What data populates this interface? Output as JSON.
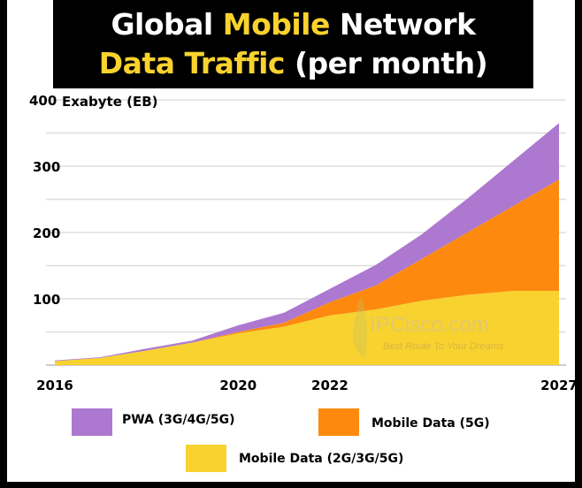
{
  "title": {
    "line1_part1": "Global ",
    "line1_part2": "Mobile",
    "line1_part3": " Network",
    "line2_part1": "Data Traffic",
    "line2_part2": " (per month)"
  },
  "watermark": {
    "brand": "IPCisco.com",
    "slogan": "Best Route To Your Dreams"
  },
  "colors": {
    "pwa": "#ad78d0",
    "mobile_5g": "#fd8a0e",
    "mobile_2g3g5g": "#f8d22f",
    "title_highlight": "#f9d22e",
    "grid": "#dddddd"
  },
  "chart_data": {
    "type": "area",
    "stacked": true,
    "title": "Global Mobile Network Data Traffic (per month)",
    "ylabel": "Exabyte (EB)",
    "x": [
      2016,
      2017,
      2018,
      2019,
      2020,
      2021,
      2022,
      2023,
      2024,
      2025,
      2026,
      2027
    ],
    "xticks": [
      "2016",
      "2020",
      "2022",
      "2027"
    ],
    "yticks": [
      "100",
      "200",
      "300",
      "400"
    ],
    "ylim": [
      0,
      400
    ],
    "grid": true,
    "legend_position": "bottom",
    "series": [
      {
        "name": "Mobile Data (2G/3G/5G)",
        "color": "#f8d22f",
        "values": [
          6,
          11,
          22,
          34,
          48,
          58,
          75,
          84,
          97,
          106,
          112,
          112
        ]
      },
      {
        "name": "Mobile Data (5G)",
        "color": "#fd8a0e",
        "values": [
          0,
          0,
          0,
          0,
          2,
          6,
          20,
          36,
          63,
          94,
          128,
          168
        ]
      },
      {
        "name": "PWA (3G/4G/5G)",
        "color": "#ad78d0",
        "values": [
          1,
          1,
          3,
          3,
          10,
          15,
          20,
          31,
          37,
          51,
          68,
          85
        ]
      }
    ]
  }
}
